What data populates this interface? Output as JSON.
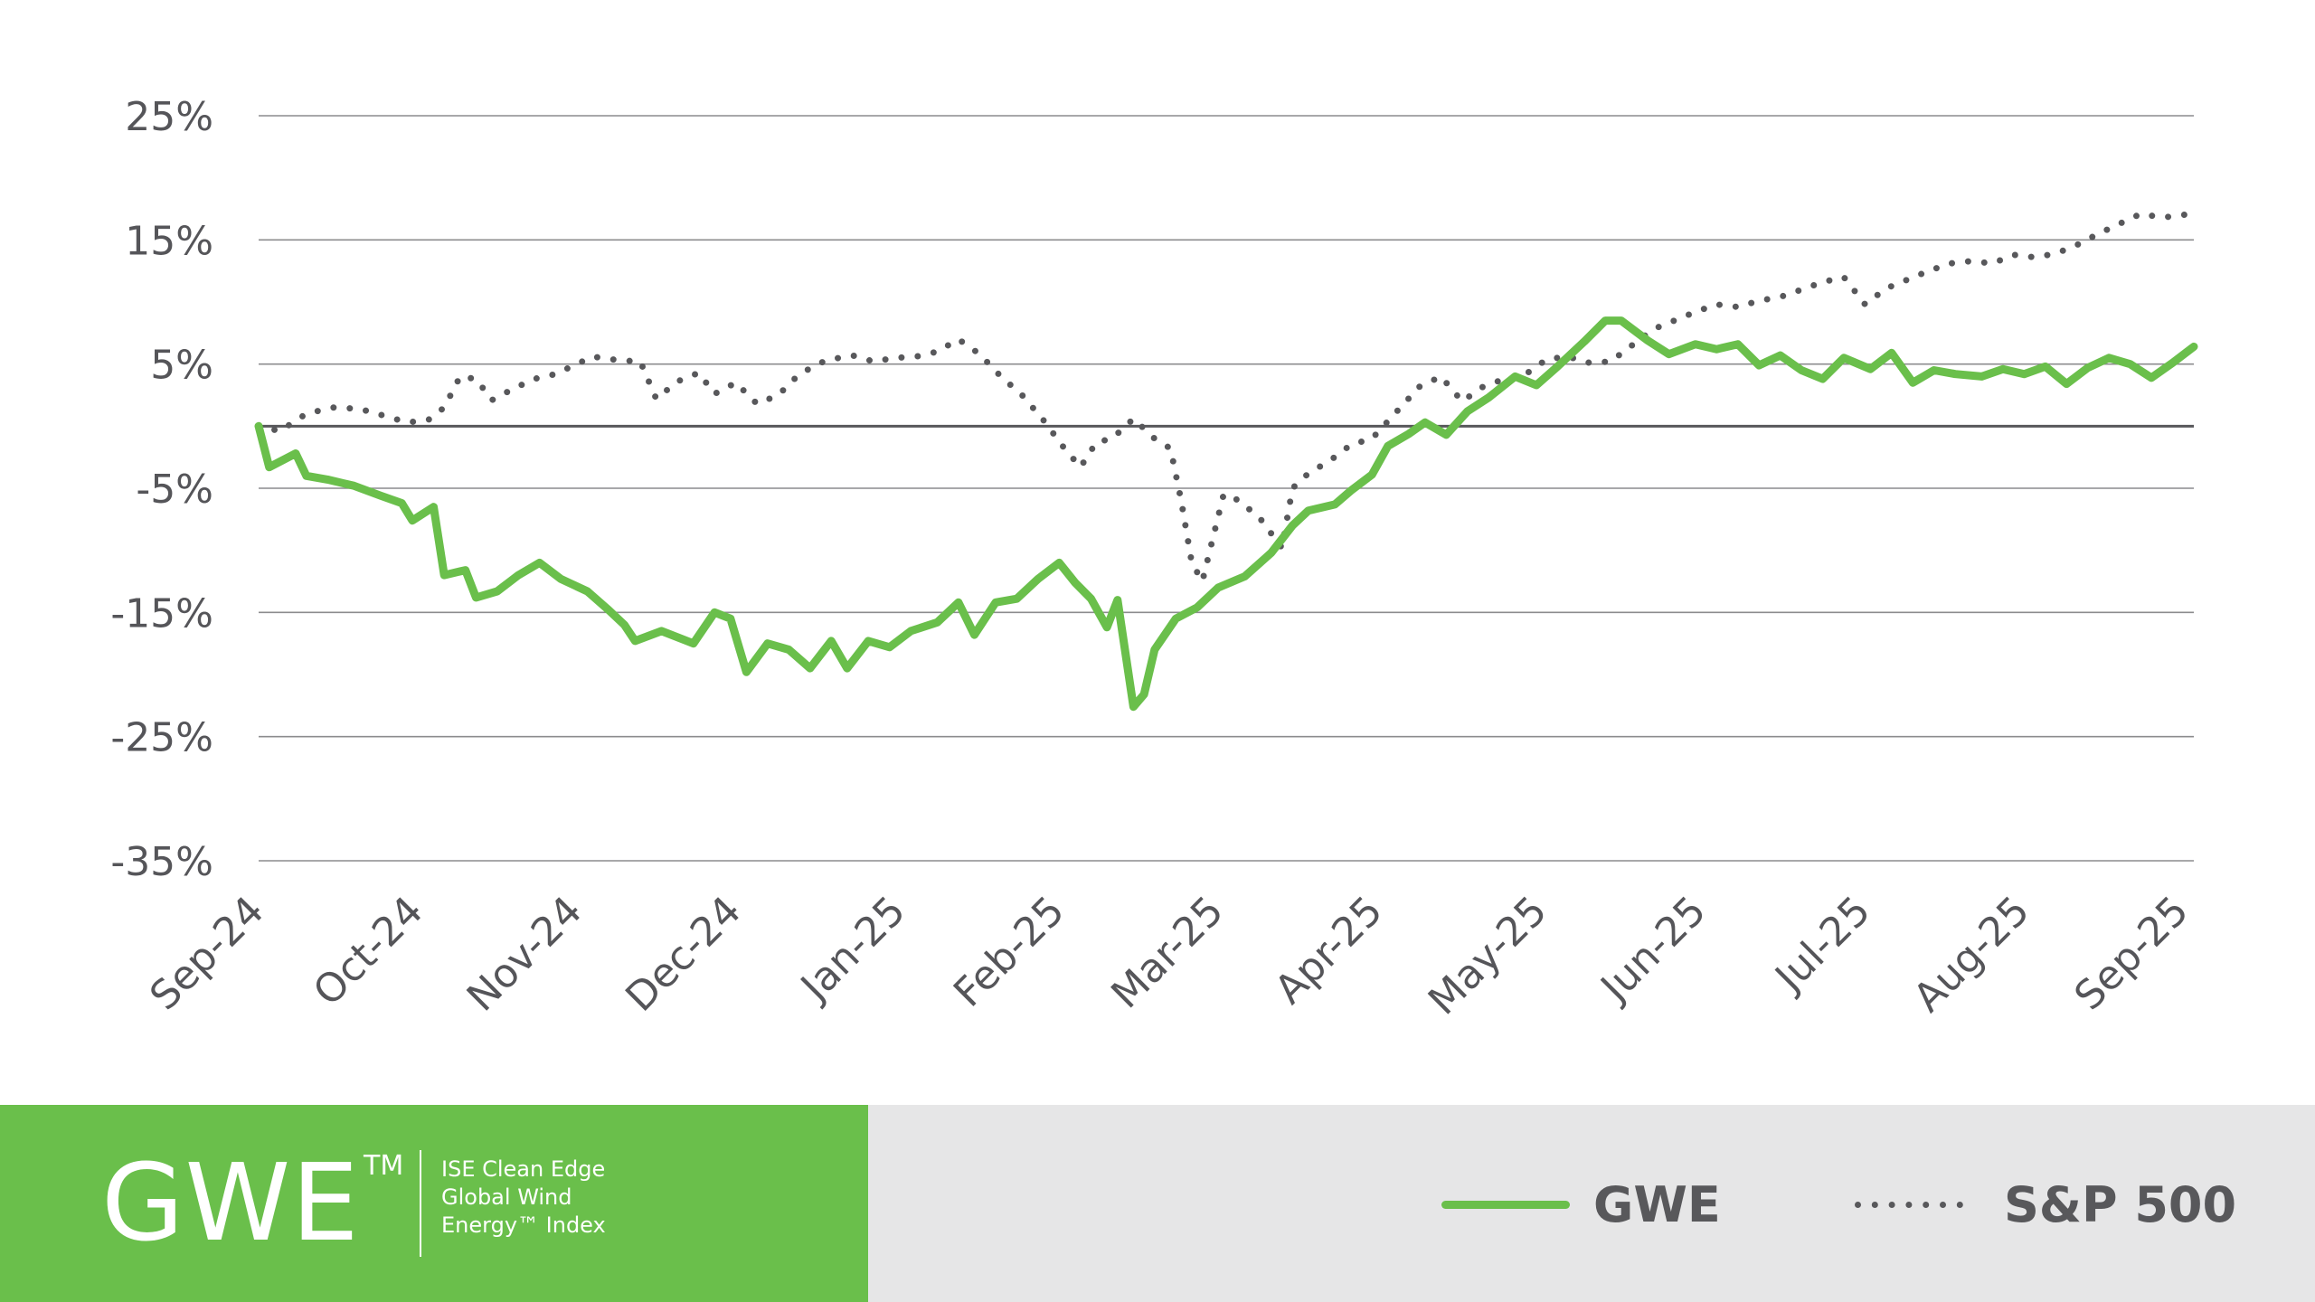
{
  "chart_data": {
    "type": "line",
    "title": "",
    "xlabel": "",
    "ylabel": "",
    "ylim": [
      -35,
      25
    ],
    "y_ticks": [
      25,
      15,
      5,
      -5,
      -15,
      -25,
      -35
    ],
    "y_tick_labels": [
      "25%",
      "15%",
      "5%",
      "-5%",
      "-15%",
      "-25%",
      "-35%"
    ],
    "x_range": [
      "2024-09-23",
      "2025-09-23"
    ],
    "x_ticks": [
      "2024-09-23",
      "2024-10-23",
      "2024-11-22",
      "2024-12-22",
      "2025-01-22",
      "2025-02-21",
      "2025-03-23",
      "2025-04-22",
      "2025-05-23",
      "2025-06-22",
      "2025-07-23",
      "2025-08-22",
      "2025-09-21"
    ],
    "x_tick_labels": [
      "Sep-24",
      "Oct-24",
      "Nov-24",
      "Dec-24",
      "Jan-25",
      "Feb-25",
      "Mar-25",
      "Apr-25",
      "May-25",
      "Jun-25",
      "Jul-25",
      "Aug-25",
      "Sep-25"
    ],
    "grid": true,
    "zero_line": true,
    "legend_position": "bottom-right",
    "series": [
      {
        "name": "GWE",
        "style": "solid",
        "color": "#6abf4b",
        "points": [
          [
            "2024-09-23",
            0
          ],
          [
            "2024-09-25",
            -3.3
          ],
          [
            "2024-09-30",
            -2.2
          ],
          [
            "2024-10-02",
            -4
          ],
          [
            "2024-10-06",
            -4.3
          ],
          [
            "2024-10-11",
            -4.8
          ],
          [
            "2024-10-16",
            -5.6
          ],
          [
            "2024-10-20",
            -6.2
          ],
          [
            "2024-10-22",
            -7.6
          ],
          [
            "2024-10-26",
            -6.5
          ],
          [
            "2024-10-28",
            -12
          ],
          [
            "2024-11-01",
            -11.6
          ],
          [
            "2024-11-03",
            -13.8
          ],
          [
            "2024-11-07",
            -13.3
          ],
          [
            "2024-11-11",
            -12
          ],
          [
            "2024-11-15",
            -11
          ],
          [
            "2024-11-19",
            -12.3
          ],
          [
            "2024-11-24",
            -13.3
          ],
          [
            "2024-11-28",
            -14.8
          ],
          [
            "2024-12-01",
            -16
          ],
          [
            "2024-12-03",
            -17.3
          ],
          [
            "2024-12-08",
            -16.5
          ],
          [
            "2024-12-14",
            -17.5
          ],
          [
            "2024-12-18",
            -15
          ],
          [
            "2024-12-21",
            -15.5
          ],
          [
            "2024-12-24",
            -19.8
          ],
          [
            "2024-12-28",
            -17.5
          ],
          [
            "2025-01-01",
            -18
          ],
          [
            "2025-01-05",
            -19.5
          ],
          [
            "2025-01-09",
            -17.3
          ],
          [
            "2025-01-12",
            -19.5
          ],
          [
            "2025-01-16",
            -17.3
          ],
          [
            "2025-01-20",
            -17.8
          ],
          [
            "2025-01-24",
            -16.5
          ],
          [
            "2025-01-29",
            -15.8
          ],
          [
            "2025-02-02",
            -14.2
          ],
          [
            "2025-02-05",
            -16.8
          ],
          [
            "2025-02-09",
            -14.2
          ],
          [
            "2025-02-13",
            -13.9
          ],
          [
            "2025-02-17",
            -12.3
          ],
          [
            "2025-02-21",
            -11
          ],
          [
            "2025-02-24",
            -12.6
          ],
          [
            "2025-02-27",
            -13.9
          ],
          [
            "2025-03-02",
            -16.2
          ],
          [
            "2025-03-04",
            -14
          ],
          [
            "2025-03-07",
            -22.6
          ],
          [
            "2025-03-09",
            -21.6
          ],
          [
            "2025-03-11",
            -18
          ],
          [
            "2025-03-15",
            -15.5
          ],
          [
            "2025-03-19",
            -14.6
          ],
          [
            "2025-03-23",
            -13
          ],
          [
            "2025-03-28",
            -12.1
          ],
          [
            "2025-04-02",
            -10.2
          ],
          [
            "2025-04-06",
            -8
          ],
          [
            "2025-04-09",
            -6.8
          ],
          [
            "2025-04-14",
            -6.3
          ],
          [
            "2025-04-17",
            -5.2
          ],
          [
            "2025-04-21",
            -3.9
          ],
          [
            "2025-04-24",
            -1.6
          ],
          [
            "2025-04-28",
            -0.6
          ],
          [
            "2025-05-01",
            0.3
          ],
          [
            "2025-05-05",
            -0.7
          ],
          [
            "2025-05-09",
            1.2
          ],
          [
            "2025-05-13",
            2.3
          ],
          [
            "2025-05-18",
            4
          ],
          [
            "2025-05-22",
            3.3
          ],
          [
            "2025-05-26",
            4.8
          ],
          [
            "2025-05-31",
            6.8
          ],
          [
            "2025-06-04",
            8.5
          ],
          [
            "2025-06-07",
            8.5
          ],
          [
            "2025-06-12",
            6.9
          ],
          [
            "2025-06-16",
            5.8
          ],
          [
            "2025-06-21",
            6.6
          ],
          [
            "2025-06-25",
            6.2
          ],
          [
            "2025-06-29",
            6.6
          ],
          [
            "2025-07-03",
            4.9
          ],
          [
            "2025-07-07",
            5.7
          ],
          [
            "2025-07-11",
            4.5
          ],
          [
            "2025-07-15",
            3.8
          ],
          [
            "2025-07-19",
            5.5
          ],
          [
            "2025-07-24",
            4.6
          ],
          [
            "2025-07-28",
            5.9
          ],
          [
            "2025-08-01",
            3.5
          ],
          [
            "2025-08-05",
            4.5
          ],
          [
            "2025-08-09",
            4.2
          ],
          [
            "2025-08-14",
            4
          ],
          [
            "2025-08-18",
            4.6
          ],
          [
            "2025-08-22",
            4.2
          ],
          [
            "2025-08-26",
            4.8
          ],
          [
            "2025-08-30",
            3.4
          ],
          [
            "2025-09-03",
            4.7
          ],
          [
            "2025-09-07",
            5.5
          ],
          [
            "2025-09-11",
            5
          ],
          [
            "2025-09-15",
            3.9
          ],
          [
            "2025-09-19",
            5.1
          ],
          [
            "2025-09-23",
            6.4
          ]
        ]
      },
      {
        "name": "S&P 500",
        "style": "dotted",
        "color": "#58585b",
        "points": [
          [
            "2024-09-23",
            0
          ],
          [
            "2024-09-27",
            -0.4
          ],
          [
            "2024-10-02",
            1
          ],
          [
            "2024-10-07",
            1.5
          ],
          [
            "2024-10-12",
            1.4
          ],
          [
            "2024-10-17",
            0.8
          ],
          [
            "2024-10-21",
            0.3
          ],
          [
            "2024-10-25",
            0.5
          ],
          [
            "2024-10-28",
            1.5
          ],
          [
            "2024-10-31",
            4
          ],
          [
            "2024-11-03",
            3.8
          ],
          [
            "2024-11-06",
            2.1
          ],
          [
            "2024-11-10",
            3
          ],
          [
            "2024-11-14",
            3.8
          ],
          [
            "2024-11-18",
            4.2
          ],
          [
            "2024-11-22",
            5
          ],
          [
            "2024-11-25",
            5.6
          ],
          [
            "2024-11-30",
            5.3
          ],
          [
            "2024-12-04",
            5.2
          ],
          [
            "2024-12-07",
            2.2
          ],
          [
            "2024-12-11",
            3.6
          ],
          [
            "2024-12-15",
            4.3
          ],
          [
            "2024-12-18",
            2.6
          ],
          [
            "2024-12-22",
            3.5
          ],
          [
            "2024-12-26",
            1.8
          ],
          [
            "2024-12-30",
            2.5
          ],
          [
            "2025-01-03",
            4.2
          ],
          [
            "2025-01-08",
            5.3
          ],
          [
            "2025-01-13",
            5.7
          ],
          [
            "2025-01-17",
            5.2
          ],
          [
            "2025-01-21",
            5.5
          ],
          [
            "2025-01-25",
            5.6
          ],
          [
            "2025-01-29",
            6
          ],
          [
            "2025-02-02",
            7
          ],
          [
            "2025-02-06",
            5.8
          ],
          [
            "2025-02-10",
            4
          ],
          [
            "2025-02-14",
            2.5
          ],
          [
            "2025-02-18",
            0.5
          ],
          [
            "2025-02-22",
            -1.8
          ],
          [
            "2025-02-25",
            -3.3
          ],
          [
            "2025-02-28",
            -1.3
          ],
          [
            "2025-03-03",
            -1
          ],
          [
            "2025-03-07",
            0.6
          ],
          [
            "2025-03-11",
            -1
          ],
          [
            "2025-03-14",
            -1.8
          ],
          [
            "2025-03-16",
            -6
          ],
          [
            "2025-03-18",
            -11
          ],
          [
            "2025-03-20",
            -12.5
          ],
          [
            "2025-03-22",
            -9
          ],
          [
            "2025-03-24",
            -5.5
          ],
          [
            "2025-03-27",
            -6
          ],
          [
            "2025-03-31",
            -7.5
          ],
          [
            "2025-04-04",
            -9.8
          ],
          [
            "2025-04-06",
            -5
          ],
          [
            "2025-04-09",
            -3.8
          ],
          [
            "2025-04-13",
            -2.8
          ],
          [
            "2025-04-17",
            -1.5
          ],
          [
            "2025-04-21",
            -1
          ],
          [
            "2025-04-24",
            0.4
          ],
          [
            "2025-04-27",
            1.8
          ],
          [
            "2025-04-30",
            3.2
          ],
          [
            "2025-05-04",
            4
          ],
          [
            "2025-05-08",
            2
          ],
          [
            "2025-05-12",
            3.2
          ],
          [
            "2025-05-16",
            3.8
          ],
          [
            "2025-05-20",
            4.2
          ],
          [
            "2025-05-24",
            5.4
          ],
          [
            "2025-05-28",
            5.6
          ],
          [
            "2025-06-01",
            5.1
          ],
          [
            "2025-06-05",
            5.2
          ],
          [
            "2025-06-09",
            6.5
          ],
          [
            "2025-06-13",
            7.8
          ],
          [
            "2025-06-17",
            8.5
          ],
          [
            "2025-06-21",
            9.2
          ],
          [
            "2025-06-25",
            9.8
          ],
          [
            "2025-06-29",
            9.6
          ],
          [
            "2025-07-03",
            10.1
          ],
          [
            "2025-07-07",
            10.4
          ],
          [
            "2025-07-11",
            11
          ],
          [
            "2025-07-15",
            11.6
          ],
          [
            "2025-07-19",
            12
          ],
          [
            "2025-07-23",
            9.8
          ],
          [
            "2025-07-27",
            11.1
          ],
          [
            "2025-07-31",
            11.8
          ],
          [
            "2025-08-04",
            12.5
          ],
          [
            "2025-08-08",
            13.1
          ],
          [
            "2025-08-12",
            13.3
          ],
          [
            "2025-08-16",
            13.1
          ],
          [
            "2025-08-20",
            13.8
          ],
          [
            "2025-08-24",
            13.6
          ],
          [
            "2025-08-28",
            13.9
          ],
          [
            "2025-09-01",
            14.6
          ],
          [
            "2025-09-05",
            15.5
          ],
          [
            "2025-09-09",
            16.3
          ],
          [
            "2025-09-13",
            17.1
          ],
          [
            "2025-09-17",
            16.8
          ],
          [
            "2025-09-21",
            17
          ],
          [
            "2025-09-23",
            17.3
          ]
        ]
      }
    ]
  },
  "legend": {
    "gwe_label": "GWE",
    "sp_label": "S&P 500"
  },
  "brand": {
    "mark": "GWE",
    "trademark": "TM",
    "desc_line1": "ISE Clean Edge",
    "desc_line2": "Global Wind",
    "desc_line3": "Energy™ Index"
  },
  "colors": {
    "gwe": "#6abf4b",
    "sp500": "#58585b",
    "grid": "#8c8c8e",
    "zero_line": "#58585b",
    "legend_background": "#e6e6e7"
  }
}
